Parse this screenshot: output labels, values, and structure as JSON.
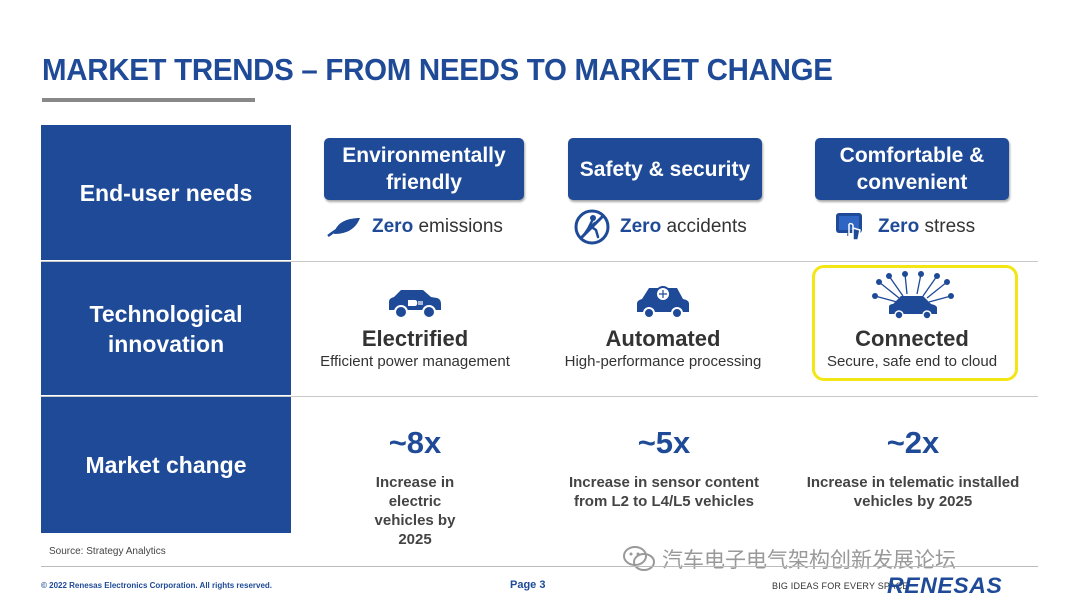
{
  "title": "MARKET TRENDS – FROM NEEDS TO MARKET CHANGE",
  "rows": {
    "needs": "End-user needs",
    "tech": "Technological innovation",
    "market": "Market change"
  },
  "needs": [
    {
      "box": "Environmentally friendly",
      "strong": "Zero",
      "rest": " emissions",
      "icon": "leaf-icon"
    },
    {
      "box": "Safety & security",
      "strong": "Zero",
      "rest": " accidents",
      "icon": "shield-walk-icon"
    },
    {
      "box": "Comfortable & convenient",
      "strong": "Zero",
      "rest": " stress",
      "icon": "touch-screen-icon"
    }
  ],
  "tech": [
    {
      "title": "Electrified",
      "sub": "Efficient power management",
      "icon": "electric-car-icon"
    },
    {
      "title": "Automated",
      "sub": "High-performance processing",
      "icon": "autonomous-car-icon"
    },
    {
      "title": "Connected",
      "sub": "Secure, safe end to cloud",
      "icon": "connected-car-icon"
    }
  ],
  "market": [
    {
      "value": "~8x",
      "desc": "Increase in electric vehicles by 2025"
    },
    {
      "value": "~5x",
      "desc": "Increase in sensor content from L2 to L4/L5 vehicles"
    },
    {
      "value": "~2x",
      "desc": "Increase in telematic installed vehicles by 2025"
    }
  ],
  "footer": {
    "source": "Source: Strategy Analytics",
    "copyright": "© 2022 Renesas Electronics Corporation. All rights reserved.",
    "page": "Page 3",
    "tagline": "BIG IDEAS FOR EVERY SPACE",
    "logo": "RENESAS",
    "watermark": "汽车电子电气架构创新发展论坛"
  },
  "colors": {
    "brand": "#1e4a97",
    "highlight": "#f2e614"
  }
}
